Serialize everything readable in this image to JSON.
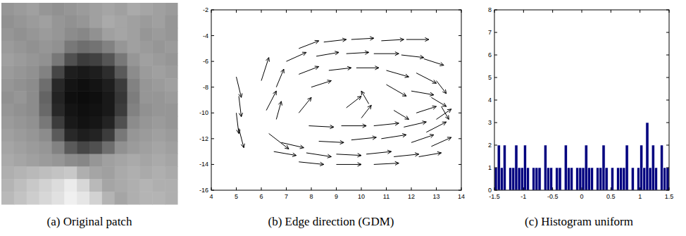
{
  "chart_data": [
    {
      "type": "heatmap",
      "title": "(a) Original patch",
      "color": "gray",
      "tick_labels": false,
      "zlim": [
        0,
        255
      ],
      "cells": [
        [
          150,
          155,
          160,
          150,
          145,
          150,
          155,
          160,
          165,
          160,
          170,
          165,
          160,
          155
        ],
        [
          145,
          150,
          155,
          160,
          150,
          145,
          150,
          160,
          170,
          165,
          160,
          155,
          160,
          150
        ],
        [
          150,
          145,
          150,
          155,
          150,
          140,
          135,
          145,
          160,
          165,
          160,
          150,
          155,
          150
        ],
        [
          155,
          150,
          145,
          150,
          145,
          120,
          110,
          115,
          130,
          150,
          160,
          155,
          150,
          155
        ],
        [
          160,
          155,
          150,
          145,
          120,
          80,
          60,
          65,
          85,
          120,
          150,
          160,
          155,
          150
        ],
        [
          155,
          150,
          145,
          130,
          70,
          30,
          25,
          30,
          45,
          90,
          140,
          155,
          160,
          155
        ],
        [
          150,
          145,
          140,
          110,
          40,
          20,
          15,
          20,
          30,
          60,
          130,
          150,
          155,
          160
        ],
        [
          145,
          150,
          140,
          100,
          35,
          15,
          12,
          15,
          25,
          55,
          125,
          150,
          150,
          155
        ],
        [
          150,
          145,
          140,
          105,
          40,
          20,
          15,
          18,
          25,
          60,
          130,
          145,
          150,
          150
        ],
        [
          155,
          150,
          145,
          120,
          60,
          25,
          18,
          22,
          35,
          80,
          140,
          150,
          155,
          150
        ],
        [
          160,
          155,
          150,
          140,
          90,
          40,
          30,
          35,
          60,
          120,
          150,
          155,
          160,
          155
        ],
        [
          165,
          160,
          155,
          150,
          130,
          90,
          70,
          80,
          110,
          145,
          155,
          160,
          165,
          160
        ],
        [
          170,
          165,
          160,
          155,
          150,
          140,
          135,
          150,
          160,
          165,
          170,
          165,
          170,
          165
        ],
        [
          175,
          180,
          185,
          190,
          195,
          200,
          175,
          165,
          160,
          170,
          175,
          170,
          175,
          170
        ],
        [
          180,
          190,
          200,
          210,
          220,
          235,
          215,
          185,
          165,
          170,
          175,
          180,
          175,
          175
        ],
        [
          185,
          195,
          205,
          215,
          225,
          240,
          230,
          210,
          180,
          165,
          175,
          180,
          180,
          175
        ]
      ]
    },
    {
      "type": "quiver",
      "title": "(b) Edge direction (GDM)",
      "color": "#000000",
      "xlim": [
        4,
        14
      ],
      "ylim": [
        -16,
        -2
      ],
      "xticks": [
        4,
        5,
        6,
        7,
        8,
        9,
        10,
        11,
        12,
        13,
        14
      ],
      "yticks": [
        -16,
        -14,
        -12,
        -10,
        -8,
        -6,
        -4,
        -2
      ],
      "x": [
        5.0,
        5.1,
        5.0,
        5.1,
        6.0,
        6.2,
        7.5,
        8.5,
        9.6,
        10.8,
        11.8,
        7.0,
        8.2,
        9.4,
        10.5,
        11.6,
        12.5,
        7.5,
        8.7,
        9.8,
        11.0,
        12.2,
        13.0,
        6.6,
        8.0,
        11.0,
        12.0,
        12.8,
        13.2,
        10.3,
        10.0,
        9.4,
        6.6,
        7.5,
        11.3,
        12.2,
        13.0,
        6.3,
        7.9,
        9.2,
        10.5,
        11.7,
        12.6,
        6.8,
        8.3,
        9.6,
        10.8,
        12.0,
        12.8,
        6.5,
        7.8,
        9.0,
        10.2,
        11.3,
        12.3,
        7.5,
        9.0,
        10.5
      ],
      "y": [
        -7.2,
        -8.7,
        -10.0,
        -11.2,
        -7.5,
        -9.8,
        -5.0,
        -4.5,
        -4.3,
        -4.4,
        -4.3,
        -6.0,
        -5.6,
        -5.4,
        -5.4,
        -5.5,
        -5.8,
        -7.0,
        -6.7,
        -6.5,
        -6.7,
        -6.9,
        -7.5,
        -8.0,
        -8.0,
        -7.8,
        -8.3,
        -8.8,
        -9.5,
        -9.3,
        -10.4,
        -9.6,
        -10.5,
        -10.0,
        -9.8,
        -10.0,
        -10.5,
        -11.6,
        -11.0,
        -11.0,
        -11.0,
        -11.1,
        -11.5,
        -12.3,
        -12.2,
        -12.1,
        -12.0,
        -12.3,
        -12.6,
        -13.0,
        -13.1,
        -13.2,
        -13.2,
        -13.4,
        -13.4,
        -13.8,
        -14.0,
        -14.0
      ],
      "u": [
        0.2,
        0.1,
        0.1,
        0.2,
        0.3,
        0.4,
        0.8,
        0.9,
        0.9,
        0.9,
        0.9,
        0.8,
        0.9,
        0.9,
        1.0,
        0.9,
        0.8,
        0.8,
        0.9,
        0.9,
        0.9,
        0.8,
        0.4,
        0.3,
        0.8,
        0.8,
        0.9,
        0.6,
        0.3,
        -0.3,
        0.4,
        0.6,
        0.2,
        0.5,
        0.6,
        0.8,
        0.6,
        0.8,
        1.0,
        1.0,
        1.0,
        0.9,
        0.8,
        0.9,
        1.0,
        1.0,
        1.0,
        0.9,
        0.8,
        0.9,
        1.0,
        1.0,
        1.0,
        1.0,
        0.9,
        1.0,
        1.0,
        1.0
      ],
      "v": [
        -1.6,
        -1.6,
        -1.6,
        -1.5,
        1.8,
        1.5,
        0.6,
        0.2,
        0.1,
        0.1,
        0.0,
        0.7,
        0.3,
        0.1,
        0.0,
        -0.2,
        -0.5,
        0.6,
        0.2,
        0.0,
        -0.5,
        -0.8,
        -1.0,
        1.4,
        0.5,
        -0.9,
        -0.3,
        -0.7,
        -1.0,
        1.0,
        1.0,
        0.9,
        1.4,
        1.2,
        -0.7,
        0.5,
        0.8,
        -1.2,
        -0.1,
        0.0,
        0.2,
        0.4,
        0.8,
        -0.4,
        -0.1,
        0.2,
        0.3,
        0.6,
        0.7,
        -0.3,
        -0.3,
        -0.1,
        0.2,
        0.2,
        0.3,
        -0.2,
        0.0,
        0.1
      ]
    },
    {
      "type": "histogram",
      "title": "(c) Histogram uniform",
      "color": "#00007f",
      "xlim": [
        -1.5,
        1.5
      ],
      "ylim": [
        0,
        8
      ],
      "xticks": [
        -1.5,
        -1,
        -0.5,
        0,
        0.5,
        1,
        1.5
      ],
      "yticks": [
        0,
        1,
        2,
        3,
        4,
        5,
        6,
        7,
        8
      ],
      "bins": [
        -1.5,
        -1.45,
        -1.4,
        -1.35,
        -1.3,
        -1.25,
        -1.2,
        -1.15,
        -1.1,
        -1.05,
        -1,
        -0.95,
        -0.9,
        -0.85,
        -0.8,
        -0.75,
        -0.7,
        -0.65,
        -0.6,
        -0.55,
        -0.5,
        -0.45,
        -0.4,
        -0.35,
        -0.3,
        -0.25,
        -0.2,
        -0.15,
        -0.1,
        -0.05,
        0,
        0.05,
        0.1,
        0.15,
        0.2,
        0.25,
        0.3,
        0.35,
        0.4,
        0.45,
        0.5,
        0.55,
        0.6,
        0.65,
        0.7,
        0.75,
        0.8,
        0.85,
        0.9,
        0.95,
        1,
        1.05,
        1.1,
        1.15,
        1.2,
        1.25,
        1.3,
        1.35,
        1.4,
        1.45,
        1.5
      ],
      "counts": [
        1,
        2,
        1,
        2,
        0,
        1,
        1,
        2,
        1,
        1,
        2,
        1,
        0,
        1,
        1,
        1,
        0,
        2,
        1,
        1,
        0,
        1,
        1,
        0,
        2,
        1,
        1,
        0,
        1,
        1,
        1,
        2,
        1,
        1,
        0,
        1,
        1,
        2,
        1,
        0,
        1,
        0,
        1,
        1,
        1,
        2,
        0,
        1,
        0,
        1,
        2,
        1,
        3,
        1,
        2,
        1,
        0,
        2,
        1,
        1
      ]
    }
  ]
}
